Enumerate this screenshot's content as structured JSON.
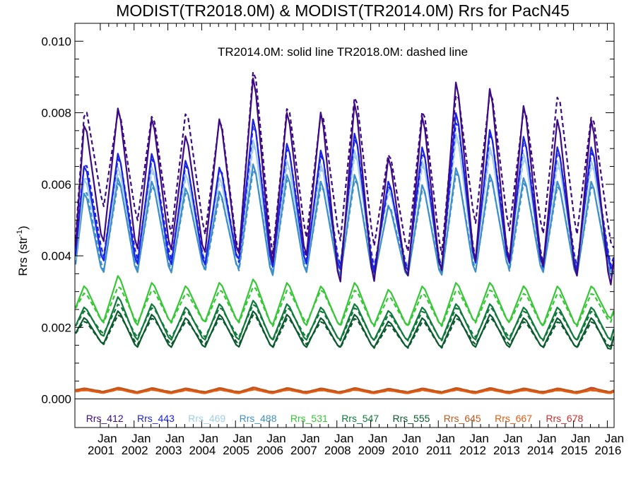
{
  "chart_data": {
    "type": "line",
    "title": "MODIST(TR2018.0M) & MODIST(TR2014.0M)  Rrs for PacN45",
    "ylabel": "Rrs (str",
    "ylabel_sup": "-1",
    "ylabel_close": ")",
    "ylim": [
      -0.0008,
      0.0105
    ],
    "xlim": [
      2000.25,
      2016.2
    ],
    "yticks": [
      {
        "value": 0.0,
        "label": "0.000"
      },
      {
        "value": 0.002,
        "label": "0.002"
      },
      {
        "value": 0.004,
        "label": "0.004"
      },
      {
        "value": 0.006,
        "label": "0.006"
      },
      {
        "value": 0.008,
        "label": "0.008"
      },
      {
        "value": 0.01,
        "label": "0.010"
      }
    ],
    "xticks": [
      {
        "value": 2001,
        "label_top": "Jan",
        "label_bottom": "2001"
      },
      {
        "value": 2002,
        "label_top": "Jan",
        "label_bottom": "2002"
      },
      {
        "value": 2003,
        "label_top": "Jan",
        "label_bottom": "2003"
      },
      {
        "value": 2004,
        "label_top": "Jan",
        "label_bottom": "2004"
      },
      {
        "value": 2005,
        "label_top": "Jan",
        "label_bottom": "2005"
      },
      {
        "value": 2006,
        "label_top": "Jan",
        "label_bottom": "2006"
      },
      {
        "value": 2007,
        "label_top": "Jan",
        "label_bottom": "2007"
      },
      {
        "value": 2008,
        "label_top": "Jan",
        "label_bottom": "2008"
      },
      {
        "value": 2009,
        "label_top": "Jan",
        "label_bottom": "2009"
      },
      {
        "value": 2010,
        "label_top": "Jan",
        "label_bottom": "2010"
      },
      {
        "value": 2011,
        "label_top": "Jan",
        "label_bottom": "2011"
      },
      {
        "value": 2012,
        "label_top": "Jan",
        "label_bottom": "2012"
      },
      {
        "value": 2013,
        "label_top": "Jan",
        "label_bottom": "2013"
      },
      {
        "value": 2014,
        "label_top": "Jan",
        "label_bottom": "2014"
      },
      {
        "value": 2015,
        "label_top": "Jan",
        "label_bottom": "2015"
      },
      {
        "value": 2016,
        "label_top": "Jan",
        "label_bottom": "2016"
      }
    ],
    "annotation": "TR2014.0M: solid line   TR2018.0M: dashed line",
    "zero_line": true,
    "series_style": {
      "TR2014.0M": "solid",
      "TR2018.0M": "dashed"
    },
    "peak_years": [
      2000,
      2001,
      2002,
      2003,
      2004,
      2005,
      2006,
      2007,
      2008,
      2009,
      2010,
      2011,
      2012,
      2013,
      2014,
      2015
    ],
    "series": [
      {
        "name": "Rrs_412",
        "color": "#3d0a85",
        "solid": {
          "baseline": 0.004,
          "peaks": [
            0.0079,
            0.0083,
            0.008,
            0.0075,
            0.008,
            0.0092,
            0.0082,
            0.0082,
            0.0085,
            0.0069,
            0.0081,
            0.0091,
            0.0089,
            0.0084,
            0.008,
            0.008
          ],
          "troughs": [
            0.0042,
            0.004,
            0.004,
            0.0039,
            0.0038,
            0.0036,
            0.0038,
            0.003,
            0.0031,
            0.0032,
            0.0033,
            0.0036,
            0.0036,
            0.0035,
            0.0032,
            0.003
          ]
        },
        "dashed": {
          "baseline": 0.0042,
          "peaks": [
            0.0083,
            0.0082,
            0.0081,
            0.0082,
            0.008,
            0.0095,
            0.0084,
            0.0082,
            0.0087,
            0.007,
            0.0083,
            0.0088,
            0.0088,
            0.0083,
            0.0087,
            0.0081
          ],
          "troughs": [
            0.0053,
            0.0049,
            0.0045,
            0.0045,
            0.0039,
            0.0039,
            0.0044,
            0.0043,
            0.0042,
            0.004,
            0.0039,
            0.0048,
            0.0046,
            0.0045,
            0.0045,
            0.0044
          ]
        }
      },
      {
        "name": "Rrs_443",
        "color": "#1a22e6",
        "solid": {
          "baseline": 0.0038,
          "peaks": [
            0.0067,
            0.007,
            0.007,
            0.0068,
            0.0066,
            0.008,
            0.0073,
            0.0071,
            0.0076,
            0.0062,
            0.0072,
            0.0082,
            0.0077,
            0.0075,
            0.0072,
            0.0072
          ],
          "troughs": [
            0.0037,
            0.0036,
            0.0036,
            0.0036,
            0.0037,
            0.0035,
            0.0036,
            0.0034,
            0.0034,
            0.0034,
            0.0034,
            0.0036,
            0.0036,
            0.0035,
            0.0034,
            0.0036
          ]
        },
        "dashed": {
          "baseline": 0.004,
          "peaks": [
            0.0068,
            0.0069,
            0.0069,
            0.0067,
            0.0066,
            0.0079,
            0.0072,
            0.007,
            0.0075,
            0.0061,
            0.0071,
            0.008,
            0.0076,
            0.0074,
            0.0071,
            0.0071
          ],
          "troughs": [
            0.0039,
            0.0038,
            0.0038,
            0.0037,
            0.0037,
            0.0036,
            0.0038,
            0.0036,
            0.0036,
            0.0035,
            0.0035,
            0.0038,
            0.0038,
            0.0037,
            0.0036,
            0.0037
          ]
        }
      },
      {
        "name": "Rrs_469",
        "color": "#a0cde8",
        "solid": {
          "baseline": 0.0037,
          "peaks": [
            0.0063,
            0.0066,
            0.0066,
            0.0064,
            0.0063,
            0.0074,
            0.0068,
            0.0067,
            0.0071,
            0.006,
            0.0068,
            0.0076,
            0.0072,
            0.007,
            0.0068,
            0.0068
          ],
          "troughs": [
            0.0038,
            0.0037,
            0.0037,
            0.0037,
            0.0037,
            0.0035,
            0.0036,
            0.0035,
            0.0035,
            0.0035,
            0.0035,
            0.0036,
            0.0037,
            0.0036,
            0.0035,
            0.0036
          ]
        },
        "dashed": {
          "baseline": 0.0038,
          "peaks": [
            0.0064,
            0.0065,
            0.0065,
            0.0063,
            0.0062,
            0.0073,
            0.0067,
            0.0066,
            0.007,
            0.0059,
            0.0067,
            0.0075,
            0.0071,
            0.0069,
            0.0067,
            0.0067
          ],
          "troughs": [
            0.0039,
            0.0038,
            0.0038,
            0.0038,
            0.0037,
            0.0036,
            0.0037,
            0.0036,
            0.0036,
            0.0036,
            0.0036,
            0.0037,
            0.0038,
            0.0037,
            0.0036,
            0.0037
          ]
        }
      },
      {
        "name": "Rrs_488",
        "color": "#3d8fcc",
        "solid": {
          "baseline": 0.0036,
          "peaks": [
            0.0059,
            0.0063,
            0.0062,
            0.006,
            0.0059,
            0.0067,
            0.0064,
            0.0062,
            0.0064,
            0.0055,
            0.0061,
            0.0066,
            0.0064,
            0.0063,
            0.0062,
            0.0062
          ],
          "troughs": [
            0.0034,
            0.0034,
            0.0034,
            0.0035,
            0.0035,
            0.0033,
            0.0034,
            0.0033,
            0.0033,
            0.0033,
            0.0033,
            0.0034,
            0.0035,
            0.0034,
            0.0033,
            0.0034
          ]
        },
        "dashed": {
          "baseline": 0.0037,
          "peaks": [
            0.006,
            0.0062,
            0.0061,
            0.0059,
            0.0058,
            0.0066,
            0.0063,
            0.0061,
            0.0063,
            0.0055,
            0.006,
            0.0065,
            0.0063,
            0.0062,
            0.0061,
            0.0061
          ],
          "troughs": [
            0.0035,
            0.0035,
            0.0035,
            0.0035,
            0.0035,
            0.0034,
            0.0035,
            0.0034,
            0.0034,
            0.0034,
            0.0034,
            0.0035,
            0.0035,
            0.0035,
            0.0034,
            0.0035
          ]
        }
      },
      {
        "name": "Rrs_531",
        "color": "#36c736",
        "solid": {
          "baseline": 0.0025,
          "peaks": [
            0.0032,
            0.0035,
            0.0033,
            0.0032,
            0.0033,
            0.0034,
            0.0033,
            0.0032,
            0.0033,
            0.0031,
            0.0032,
            0.0033,
            0.0033,
            0.0032,
            0.0032,
            0.0032
          ],
          "troughs": [
            0.0021,
            0.002,
            0.0021,
            0.0021,
            0.0021,
            0.002,
            0.002,
            0.002,
            0.002,
            0.002,
            0.002,
            0.0021,
            0.0021,
            0.002,
            0.002,
            0.0022
          ]
        },
        "dashed": {
          "baseline": 0.0025,
          "peaks": [
            0.003,
            0.0032,
            0.0031,
            0.003,
            0.0031,
            0.0032,
            0.0031,
            0.0031,
            0.0031,
            0.0029,
            0.003,
            0.0031,
            0.0031,
            0.003,
            0.003,
            0.003
          ],
          "troughs": [
            0.0021,
            0.0021,
            0.0021,
            0.0021,
            0.0021,
            0.002,
            0.0021,
            0.002,
            0.002,
            0.002,
            0.002,
            0.0021,
            0.0021,
            0.002,
            0.002,
            0.0021
          ]
        }
      },
      {
        "name": "Rrs_547",
        "color": "#0f7a3a",
        "solid": {
          "baseline": 0.002,
          "peaks": [
            0.0026,
            0.0029,
            0.0027,
            0.0026,
            0.0027,
            0.0028,
            0.0027,
            0.0026,
            0.0027,
            0.0025,
            0.0026,
            0.0027,
            0.0027,
            0.0026,
            0.0026,
            0.0026
          ],
          "troughs": [
            0.0017,
            0.0016,
            0.0016,
            0.0016,
            0.0016,
            0.0016,
            0.0016,
            0.0016,
            0.0016,
            0.0016,
            0.0016,
            0.0016,
            0.0016,
            0.0016,
            0.0016,
            0.0016
          ]
        },
        "dashed": {
          "baseline": 0.002,
          "peaks": [
            0.0025,
            0.0027,
            0.0026,
            0.0025,
            0.0026,
            0.0027,
            0.0026,
            0.0025,
            0.0026,
            0.0024,
            0.0025,
            0.0026,
            0.0026,
            0.0025,
            0.0025,
            0.0025
          ],
          "troughs": [
            0.0018,
            0.0017,
            0.0017,
            0.0017,
            0.0017,
            0.0016,
            0.0017,
            0.0016,
            0.0016,
            0.0016,
            0.0016,
            0.0017,
            0.0017,
            0.0016,
            0.0016,
            0.0016
          ]
        }
      },
      {
        "name": "Rrs_555",
        "color": "#0b5a2e",
        "solid": {
          "baseline": 0.0018,
          "peaks": [
            0.0023,
            0.0025,
            0.0024,
            0.0023,
            0.0024,
            0.0025,
            0.0024,
            0.0023,
            0.0024,
            0.0022,
            0.0023,
            0.0024,
            0.0024,
            0.0023,
            0.0023,
            0.0023
          ],
          "troughs": [
            0.0015,
            0.0014,
            0.0014,
            0.0014,
            0.0014,
            0.0014,
            0.0014,
            0.0014,
            0.0014,
            0.0014,
            0.0014,
            0.0014,
            0.0014,
            0.0014,
            0.0014,
            0.0013
          ]
        },
        "dashed": {
          "baseline": 0.0018,
          "peaks": [
            0.0022,
            0.0024,
            0.0023,
            0.0022,
            0.0023,
            0.0024,
            0.0023,
            0.0022,
            0.0023,
            0.0021,
            0.0022,
            0.0023,
            0.0023,
            0.0022,
            0.0022,
            0.0022
          ],
          "troughs": [
            0.0015,
            0.0015,
            0.0015,
            0.0015,
            0.0015,
            0.0014,
            0.0015,
            0.0014,
            0.0014,
            0.0014,
            0.0014,
            0.0015,
            0.0015,
            0.0014,
            0.0014,
            0.0014
          ]
        }
      },
      {
        "name": "Rrs_645",
        "color": "#c0571c",
        "solid": {
          "baseline": 0.00025,
          "peaks": [
            0.0003,
            0.00032,
            0.00031,
            0.0003,
            0.00031,
            0.00032,
            0.00031,
            0.0003,
            0.00031,
            0.00029,
            0.0003,
            0.00031,
            0.00031,
            0.0003,
            0.0003,
            0.0003
          ],
          "troughs": [
            0.0002,
            0.00019,
            0.00019,
            0.00019,
            0.00019,
            0.00019,
            0.00019,
            0.00019,
            0.00019,
            0.00019,
            0.00019,
            0.00019,
            0.00019,
            0.00019,
            0.00019,
            0.00019
          ]
        },
        "dashed": {
          "baseline": 0.00025,
          "peaks": [
            0.00029,
            0.00031,
            0.0003,
            0.00029,
            0.0003,
            0.00031,
            0.0003,
            0.00029,
            0.0003,
            0.00028,
            0.00029,
            0.0003,
            0.0003,
            0.00029,
            0.00029,
            0.00029
          ],
          "troughs": [
            0.00021,
            0.0002,
            0.0002,
            0.0002,
            0.0002,
            0.0002,
            0.0002,
            0.0002,
            0.0002,
            0.0002,
            0.0002,
            0.0002,
            0.0002,
            0.0002,
            0.0002,
            0.0002
          ]
        }
      },
      {
        "name": "Rrs_667",
        "color": "#e85a10",
        "solid": {
          "baseline": 0.0002,
          "peaks": [
            0.00025,
            0.00027,
            0.00026,
            0.00025,
            0.00026,
            0.00027,
            0.00026,
            0.00025,
            0.00026,
            0.00024,
            0.00025,
            0.00026,
            0.00026,
            0.00025,
            0.00025,
            0.00025
          ],
          "troughs": [
            0.00016,
            0.00015,
            0.00015,
            0.00015,
            0.00015,
            0.00015,
            0.00015,
            0.00015,
            0.00015,
            0.00015,
            0.00015,
            0.00015,
            0.00015,
            0.00015,
            0.00015,
            0.00015
          ]
        },
        "dashed": {
          "baseline": 0.0002,
          "peaks": [
            0.00024,
            0.00026,
            0.00025,
            0.00024,
            0.00025,
            0.00026,
            0.00025,
            0.00024,
            0.00025,
            0.00023,
            0.00024,
            0.00025,
            0.00025,
            0.00024,
            0.00024,
            0.00024
          ],
          "troughs": [
            0.00017,
            0.00016,
            0.00016,
            0.00016,
            0.00016,
            0.00016,
            0.00016,
            0.00016,
            0.00016,
            0.00016,
            0.00016,
            0.00016,
            0.00016,
            0.00016,
            0.00016,
            0.00016
          ]
        }
      },
      {
        "name": "Rrs_678",
        "color": "#d42a2a",
        "solid": {
          "baseline": 0.00023,
          "peaks": [
            0.0003,
            0.00032,
            0.00031,
            0.0003,
            0.00031,
            0.00033,
            0.00031,
            0.0003,
            0.00031,
            0.00029,
            0.0003,
            0.00031,
            0.00031,
            0.0003,
            0.0003,
            0.00032
          ],
          "troughs": [
            0.00018,
            0.00017,
            0.00017,
            0.00017,
            0.00017,
            0.00017,
            0.00017,
            0.00017,
            0.00017,
            0.00017,
            0.00017,
            0.00017,
            0.00017,
            0.00017,
            0.00017,
            0.00017
          ]
        },
        "dashed": {
          "baseline": 0.00023,
          "peaks": [
            0.00029,
            0.00031,
            0.0003,
            0.00029,
            0.0003,
            0.00032,
            0.0003,
            0.00029,
            0.0003,
            0.00028,
            0.00029,
            0.0003,
            0.0003,
            0.00029,
            0.00029,
            0.00031
          ],
          "troughs": [
            0.00019,
            0.00018,
            0.00018,
            0.00018,
            0.00018,
            0.00018,
            0.00018,
            0.00018,
            0.00018,
            0.00018,
            0.00018,
            0.00018,
            0.00018,
            0.00018,
            0.00018,
            0.00018
          ]
        }
      }
    ]
  }
}
